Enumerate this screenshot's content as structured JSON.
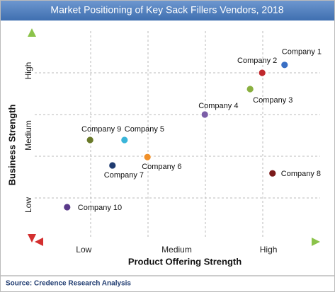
{
  "chart_data": {
    "type": "scatter",
    "title": "Market Positioning of Key Sack Fillers Vendors, 2018",
    "x_label": "Product Offering Strength",
    "y_label": "Business Strength",
    "source": "Source: Credence Research Analysis",
    "xlim": [
      0,
      5
    ],
    "ylim": [
      0,
      5
    ],
    "xticks": [
      {
        "value": 0.88,
        "label": "Low"
      },
      {
        "value": 2.5,
        "label": "Medium"
      },
      {
        "value": 4.1,
        "label": "High"
      }
    ],
    "yticks": [
      {
        "value": 0.83,
        "label": "Low"
      },
      {
        "value": 2.5,
        "label": "Medium"
      },
      {
        "value": 4.05,
        "label": "High"
      }
    ],
    "xgrid": [
      1,
      2,
      3,
      4
    ],
    "ygrid": [
      1,
      2,
      3,
      4
    ],
    "points": [
      {
        "name": "Company 1",
        "x": 4.38,
        "y": 4.19,
        "color": "#3a6fc4"
      },
      {
        "name": "Company 2",
        "x": 3.99,
        "y": 4.0,
        "color": "#c0282d"
      },
      {
        "name": "Company 3",
        "x": 3.78,
        "y": 3.61,
        "color": "#8ab040"
      },
      {
        "name": "Company 4",
        "x": 2.99,
        "y": 3.0,
        "color": "#7b5ea7"
      },
      {
        "name": "Company 5",
        "x": 1.59,
        "y": 2.39,
        "color": "#3ab5d9"
      },
      {
        "name": "Company 6",
        "x": 1.99,
        "y": 1.98,
        "color": "#f0902a"
      },
      {
        "name": "Company 7",
        "x": 1.38,
        "y": 1.78,
        "color": "#1f3b70"
      },
      {
        "name": "Company 8",
        "x": 4.17,
        "y": 1.59,
        "color": "#7a1a1a"
      },
      {
        "name": "Company 9",
        "x": 0.99,
        "y": 2.39,
        "color": "#6a7a2a"
      },
      {
        "name": "Company 10",
        "x": 0.59,
        "y": 0.78,
        "color": "#5a3a8a"
      }
    ]
  }
}
